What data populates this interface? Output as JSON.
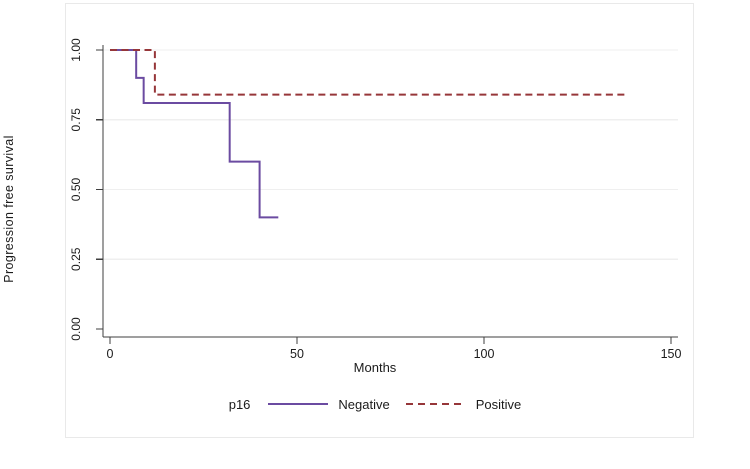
{
  "figure": {
    "y_title": "Progression free survival",
    "x_title": "Months",
    "legend": {
      "group_label": "p16",
      "items": [
        {
          "label": "Negative",
          "style": "solid",
          "color": "#6b4ba1"
        },
        {
          "label": "Positive",
          "style": "dashed",
          "color": "#963639"
        }
      ]
    },
    "colors": {
      "negative_line": "#6b4ba1",
      "positive_line": "#963639",
      "axis": "#3f3f3f",
      "gridline": "#efefef",
      "text": "#1b1b1b",
      "figure_border": "#e9e9e9",
      "background": "#ffffff"
    }
  },
  "chart_data": {
    "type": "line",
    "subtype": "kaplan-meier-step",
    "title": "",
    "xlabel": "Months",
    "ylabel": "Progression free survival",
    "xlim": [
      0,
      152
    ],
    "ylim": [
      0,
      1.04
    ],
    "grid": "horizontal-only",
    "legend_position": "bottom",
    "xticks": [
      0,
      50,
      100,
      150
    ],
    "xtick_labels": [
      "0",
      "50",
      "100",
      "150"
    ],
    "yticks": [
      0,
      0.25,
      0.5,
      0.75,
      1
    ],
    "ytick_labels": [
      "0.00",
      "0.25",
      "0.50",
      "0.75",
      "1.00"
    ],
    "series": [
      {
        "name": "Negative",
        "color": "#6b4ba1",
        "dash": "solid",
        "steps": [
          [
            0,
            1.0
          ],
          [
            7,
            0.9
          ],
          [
            9,
            0.81
          ],
          [
            32,
            0.6
          ],
          [
            40,
            0.4
          ]
        ],
        "end_x": 45
      },
      {
        "name": "Positive",
        "color": "#963639",
        "dash": "dashed",
        "steps": [
          [
            0,
            1.0
          ],
          [
            12,
            0.84
          ]
        ],
        "end_x": 138
      }
    ]
  }
}
